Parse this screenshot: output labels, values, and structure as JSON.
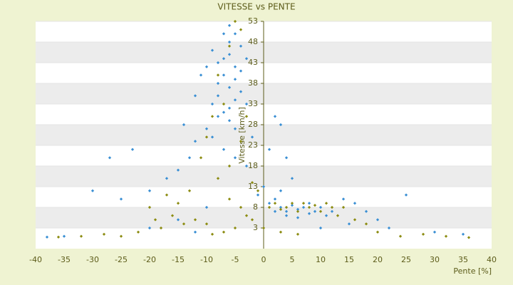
{
  "chart_data": {
    "type": "scatter",
    "title": "VITESSE vs PENTE",
    "x_label": "Pente [%]",
    "y_label": "Vitesse [km/h]",
    "xlim": [
      -40,
      40
    ],
    "xticks": [
      -40,
      -35,
      -30,
      -25,
      -20,
      -15,
      -10,
      -5,
      0,
      5,
      10,
      15,
      20,
      25,
      30,
      35,
      40
    ],
    "ylim": [
      -2,
      53
    ],
    "yticks": [
      3,
      8,
      13,
      18,
      23,
      28,
      33,
      38,
      43,
      48,
      53
    ],
    "grid": "bands",
    "series": [
      {
        "color": "#3a8fd4",
        "x": [
          -6,
          -5,
          -7,
          -8,
          -6,
          -5,
          -4,
          -7,
          -6,
          -5,
          -8,
          -9,
          -7,
          -6,
          -10,
          -11,
          -9,
          -4,
          -3,
          -5,
          -6,
          -8,
          -10,
          -12,
          -13,
          -15,
          -17,
          -20,
          -25,
          -30,
          -27,
          -23,
          -14,
          -12,
          -9,
          -7,
          -5,
          -3,
          -2,
          -6,
          -4,
          -7,
          -8,
          -3,
          -5,
          1,
          2,
          3,
          4,
          5,
          3,
          2,
          1,
          3,
          4,
          5,
          6,
          7,
          8,
          9,
          10,
          11,
          12,
          6,
          4,
          2,
          8,
          14,
          16,
          18,
          20,
          22,
          25,
          30,
          35,
          -15,
          -20,
          -10,
          -12,
          -35,
          -38,
          15,
          10,
          0,
          -1
        ],
        "values": [
          45,
          42,
          40,
          38,
          37,
          39,
          41,
          44,
          48,
          50,
          35,
          33,
          31,
          29,
          42,
          40,
          46,
          36,
          33,
          34,
          32,
          30,
          27,
          24,
          20,
          17,
          15,
          12,
          10,
          12,
          20,
          22,
          28,
          35,
          25,
          22,
          20,
          18,
          25,
          52,
          47,
          50,
          43,
          44,
          27,
          22,
          30,
          28,
          20,
          15,
          12,
          10,
          9,
          8,
          7,
          8.5,
          7.5,
          8,
          6.5,
          7,
          8,
          6,
          7,
          5.5,
          6,
          7,
          9,
          10,
          9,
          7,
          5,
          3,
          11,
          2,
          1.5,
          5,
          3,
          8,
          2,
          1,
          0.8,
          4,
          3,
          13,
          11
        ]
      },
      {
        "color": "#8c8c12",
        "x": [
          -6,
          -5,
          -4,
          -8,
          -7,
          -9,
          -10,
          -11,
          -8,
          -6,
          -4,
          -3,
          -12,
          -14,
          -16,
          -18,
          -20,
          -22,
          -25,
          -28,
          -32,
          -36,
          -5,
          -7,
          -9,
          -2,
          -1,
          1,
          2,
          3,
          4,
          5,
          6,
          7,
          8,
          9,
          10,
          11,
          12,
          13,
          14,
          16,
          18,
          20,
          24,
          28,
          32,
          36,
          -13,
          -15,
          -17,
          -3,
          -4,
          -6,
          -2,
          0,
          3,
          6,
          -10,
          -19
        ],
        "values": [
          47,
          53,
          51,
          40,
          33,
          30,
          25,
          20,
          15,
          10,
          8,
          6,
          5,
          4,
          6,
          3,
          8,
          2,
          1,
          1.5,
          1,
          0.8,
          3,
          2,
          1.5,
          5,
          12,
          8,
          9,
          7.5,
          8,
          9,
          7,
          9,
          8,
          8.5,
          7,
          9,
          8,
          6,
          8,
          5,
          4,
          2,
          1,
          1.5,
          1,
          0.7,
          12,
          9,
          11,
          30,
          24,
          18,
          14,
          3,
          2,
          1.5,
          4,
          5
        ]
      }
    ]
  }
}
